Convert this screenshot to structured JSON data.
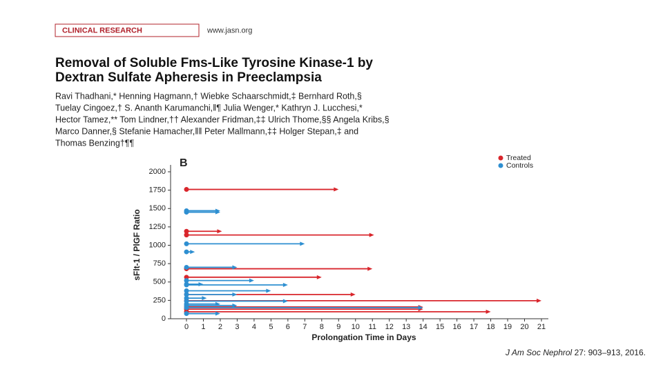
{
  "header": {
    "section": "CLINICAL RESEARCH",
    "url": "www.jasn.org",
    "title_lines": [
      "Removal of Soluble Fms-Like Tyrosine Kinase-1 by",
      "Dextran Sulfate Apheresis in Preeclampsia"
    ],
    "author_lines": [
      "Ravi Thadhani,* Henning Hagmann,† Wiebke Schaarschmidt,‡ Bernhard Roth,§",
      "Tuelay Cingoez,† S. Ananth Karumanchi,‖¶ Julia Wenger,* Kathryn J. Lucchesi,*",
      "Hector Tamez,** Tom Lindner,†† Alexander Fridman,‡‡ Ulrich Thome,§§ Angela Kribs,§",
      "Marco Danner,§ Stefanie Hamacher,‖‖ Peter Mallmann,‡‡ Holger Stepan,‡ and",
      "Thomas Benzing†¶¶"
    ]
  },
  "chart_data": {
    "type": "arrow",
    "panel_label": "B",
    "xlabel": "Prolongation Time in Days",
    "ylabel": "sFlt-1 / PlGF Ratio",
    "xlim": [
      0,
      21
    ],
    "xticks": [
      0,
      1,
      2,
      3,
      4,
      5,
      6,
      7,
      8,
      9,
      10,
      11,
      12,
      13,
      14,
      15,
      16,
      17,
      18,
      19,
      20,
      21
    ],
    "ylim": [
      0,
      2000
    ],
    "yticks": [
      0,
      250,
      500,
      750,
      1000,
      1250,
      1500,
      1750,
      2000
    ],
    "legend": "top-right",
    "series": [
      {
        "name": "Treated",
        "color": "#d9262c",
        "values": [
          1760,
          1190,
          1140,
          680,
          565,
          330,
          245,
          160,
          130,
          95
        ],
        "x": [
          9,
          2.1,
          11.1,
          11,
          8,
          10,
          21,
          14,
          14,
          18
        ]
      },
      {
        "name": "Controls",
        "color": "#2e8fd1",
        "values": [
          1470,
          1450,
          1020,
          910,
          700,
          520,
          470,
          460,
          380,
          330,
          280,
          240,
          200,
          180,
          150,
          70
        ],
        "x": [
          2,
          2,
          7,
          0.5,
          3,
          4,
          1,
          6,
          5,
          3,
          1.2,
          6,
          2,
          3,
          14,
          2
        ]
      }
    ]
  },
  "citation": {
    "journal": "J Am Soc Nephrol",
    "details": "27: 903–913, 2016."
  }
}
